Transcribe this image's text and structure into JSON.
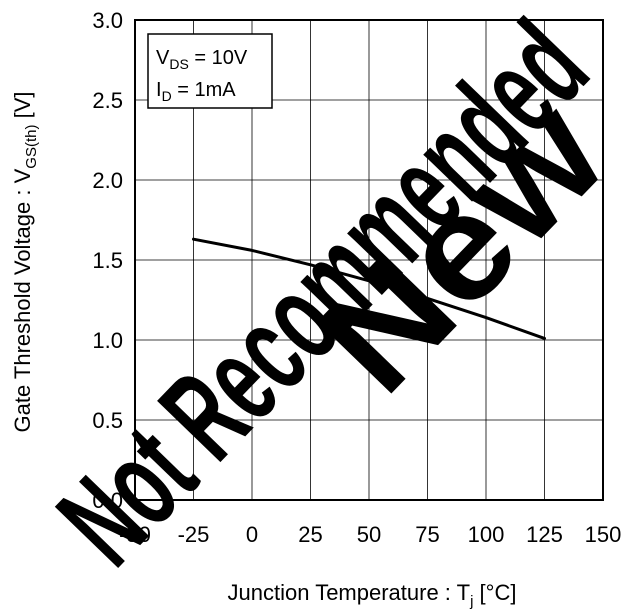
{
  "chart_data": {
    "type": "line",
    "xlabel": "Junction Temperature : T",
    "xlabel_sub": "j",
    "xlabel_unit": " [°C]",
    "ylabel": "Gate Threshold Voltage : V",
    "ylabel_sub": "GS(th)",
    "ylabel_unit": " [V]",
    "xlim": [
      -50,
      150
    ],
    "ylim": [
      0.0,
      3.0
    ],
    "x_ticks": [
      "-50",
      "-25",
      "0",
      "25",
      "50",
      "75",
      "100",
      "125",
      "150"
    ],
    "y_ticks": [
      "0.0",
      "0.5",
      "1.0",
      "1.5",
      "2.0",
      "2.5",
      "3.0"
    ],
    "grid": true,
    "series": [
      {
        "x": [
          -25,
          0,
          25,
          50,
          75,
          100,
          125
        ],
        "y": [
          1.63,
          1.56,
          1.47,
          1.37,
          1.26,
          1.14,
          1.01
        ],
        "color": "#000000"
      }
    ],
    "conditions": [
      {
        "main": "V",
        "sub": "DS",
        "rest": " = 10V"
      },
      {
        "main": "I",
        "sub": "D",
        "rest": " = 1mA"
      }
    ],
    "watermark": [
      "Not Recommended",
      "New"
    ]
  }
}
